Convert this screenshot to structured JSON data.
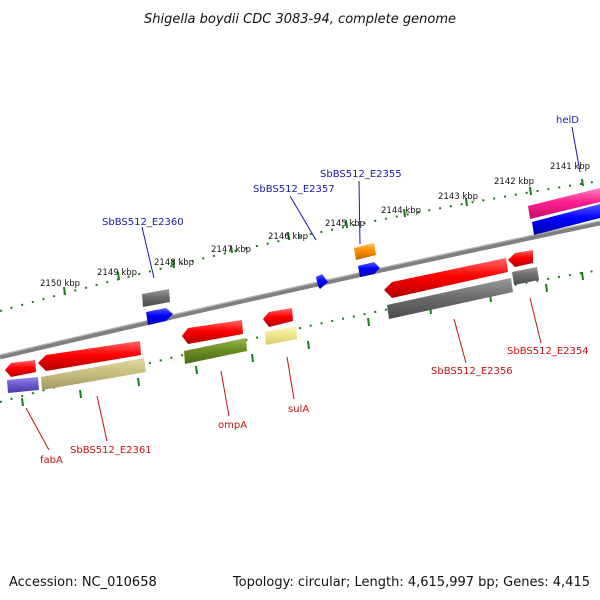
{
  "title": "Shigella boydii CDC 3083-94, complete genome",
  "footer": {
    "accession": "Accession: NC_010658",
    "summary": "Topology: circular; Length: 4,615,997 bp; Genes: 4,415"
  },
  "ticks": [
    {
      "label": "2141 kbp",
      "pos": 2141
    },
    {
      "label": "2142 kbp",
      "pos": 2142
    },
    {
      "label": "2143 kbp",
      "pos": 2143
    },
    {
      "label": "2144 kbp",
      "pos": 2144
    },
    {
      "label": "2145 kbp",
      "pos": 2145
    },
    {
      "label": "2146 kbp",
      "pos": 2146
    },
    {
      "label": "2147 kbp",
      "pos": 2147
    },
    {
      "label": "2148 kbp",
      "pos": 2148
    },
    {
      "label": "2149 kbp",
      "pos": 2149
    },
    {
      "label": "2150 kbp",
      "pos": 2150
    }
  ],
  "genes_top": [
    {
      "name": "helD",
      "color": "#ff2090",
      "lane": "outer"
    },
    {
      "name": "SbBS512_E2355",
      "color": "#ff8c00",
      "lane": "outer"
    },
    {
      "name": "SbBS512_E2357",
      "color": "#0000ff",
      "lane": "inner"
    },
    {
      "name": "SbBS512_E2360",
      "color": "#0000ff",
      "lane": "inner"
    }
  ],
  "genes_bottom": [
    {
      "name": "SbBS512_E2354",
      "color": "#ff0000"
    },
    {
      "name": "SbBS512_E2356",
      "color": "#ff0000"
    },
    {
      "name": "sulA",
      "color": "#ff0000"
    },
    {
      "name": "ompA",
      "color": "#ff0000"
    },
    {
      "name": "SbBS512_E2361",
      "color": "#ff0000"
    },
    {
      "name": "fabA",
      "color": "#ff0000"
    }
  ],
  "colors": {
    "backbone": "#808080",
    "ticks": "#1a7a1a",
    "forward_cds": "#0000ff",
    "reverse_cds": "#ff0000",
    "gray_feature": "#707070",
    "olive_feature": "#6b8e23",
    "khaki_feature": "#c8c080",
    "yellow_feature": "#f0e68c",
    "purple_feature": "#6a5acd",
    "orange_feature": "#ff8c00",
    "pink_feature": "#ff2090"
  }
}
